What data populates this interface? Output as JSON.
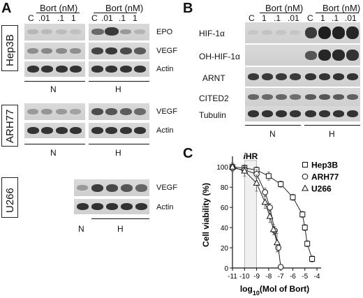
{
  "panels": {
    "A": {
      "letter": "A",
      "treatment_header": "Bort (nM)",
      "lanes": [
        "C",
        ".01",
        ".1",
        "1"
      ],
      "cell_lines": [
        "Hep3B",
        "ARH77",
        "U266"
      ],
      "blot_labels": {
        "epo": "EPO",
        "vegf": "VEGF",
        "actin": "Actin"
      },
      "conditions": {
        "normoxia": "N",
        "hypoxia": "H"
      }
    },
    "B": {
      "letter": "B",
      "treatment_header": "Bort (nM)",
      "lanes": [
        "C",
        "1",
        ".1",
        ".01"
      ],
      "blot_labels": {
        "hif": "HIF-1α",
        "ohhif": "OH-HIF-1α",
        "arnt": "ARNT",
        "cited2": "CITED2",
        "tubulin": "Tubulin"
      },
      "conditions": {
        "normoxia": "N",
        "hypoxia": "H"
      }
    },
    "C": {
      "letter": "C",
      "chart_data": {
        "type": "line",
        "annotation": "iHR",
        "annotation_range": [
          -10,
          -9
        ],
        "xlabel": "log10(Mol of Bort)",
        "ylabel": "Cell viability (%)",
        "xlim": [
          -11,
          -4
        ],
        "ylim": [
          0,
          105
        ],
        "xticks": [
          -11,
          -10,
          -9,
          -8,
          -7,
          -6,
          -5,
          -4
        ],
        "yticks": [
          0,
          20,
          40,
          60,
          80,
          100
        ],
        "legend_position": "top-right",
        "series": [
          {
            "name": "Hep3B",
            "marker": "square",
            "x": [
              -11,
              -10,
              -9,
              -8,
              -7,
              -6,
              -5.2,
              -5.0,
              -4.8,
              -4.4
            ],
            "y": [
              100,
              99,
              97,
              91,
              83,
              70,
              53,
              40,
              24,
              9
            ],
            "err": [
              3,
              3,
              3,
              4,
              3,
              3,
              3,
              3,
              3,
              3
            ]
          },
          {
            "name": "ARH77",
            "marker": "circle",
            "x": [
              -11,
              -10,
              -9,
              -8.3,
              -7.9,
              -7.5,
              -7.2,
              -7.0
            ],
            "y": [
              99,
              97,
              93,
              75,
              60,
              37,
              20,
              1
            ],
            "err": [
              3,
              3,
              4,
              4,
              4,
              4,
              4,
              1
            ]
          },
          {
            "name": "U266",
            "marker": "triangle",
            "x": [
              -11,
              -10,
              -9,
              -8.3,
              -7.9,
              -7.6,
              -7.3
            ],
            "y": [
              100,
              96,
              84,
              65,
              51,
              38,
              25
            ],
            "err": [
              4,
              5,
              8,
              6,
              6,
              5,
              9
            ]
          }
        ]
      }
    }
  }
}
